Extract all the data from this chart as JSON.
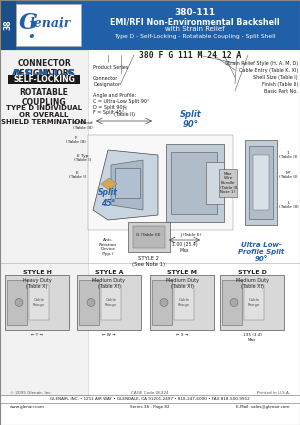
{
  "page_num": "38",
  "header_bg": "#2060a8",
  "header_title_line1": "380-111",
  "header_title_line2": "EMI/RFI Non-Environmental Backshell",
  "header_title_line3": "with Strain Relief",
  "header_title_line4": "Type D - Self-Locking - Rotatable Coupling - Split Shell",
  "designator_letters": "A-F-H-L-S",
  "self_locking_text": "SELF-LOCKING",
  "rotatable_text": "ROTATABLE\nCOUPLING",
  "type_d_text": "TYPE D INDIVIDUAL\nOR OVERALL\nSHIELD TERMINATION",
  "part_number_example": "380 F G 111 M 24 12 A",
  "split_90_text": "Split\n90°",
  "split_45_text": "Split\n45°",
  "ultra_low_text": "Ultra Low-\nProfile Split\n90°",
  "style2_text": "STYLE 2\n(See Note 1)",
  "dim_text": "1.00 (25.4)\nMax",
  "styles": [
    {
      "name": "STYLE H",
      "desc": "Heavy Duty\n(Table X)"
    },
    {
      "name": "STYLE A",
      "desc": "Medium Duty\n(Table XI)"
    },
    {
      "name": "STYLE M",
      "desc": "Medium Duty\n(Table XI)"
    },
    {
      "name": "STYLE D",
      "desc": "Medium Duty\n(Table XI)"
    }
  ],
  "footer_line1": "GLENAIR, INC. • 1211 AIR WAY • GLENDALE, CA 91201-2497 • 818-247-6000 • FAX 818-500-9912",
  "footer_line2_left": "www.glenair.com",
  "footer_line2_mid": "Series 38 - Page 82",
  "footer_line2_right": "E-Mail: sales@glenair.com",
  "copyright": "© 2005 Glenair, Inc.",
  "cage_code": "CAGE Code 06324",
  "printed": "Printed in U.S.A.",
  "bg_color": "#ffffff",
  "header_text_color": "#ffffff",
  "blue_text_color": "#2060a8",
  "body_text_color": "#231f20"
}
